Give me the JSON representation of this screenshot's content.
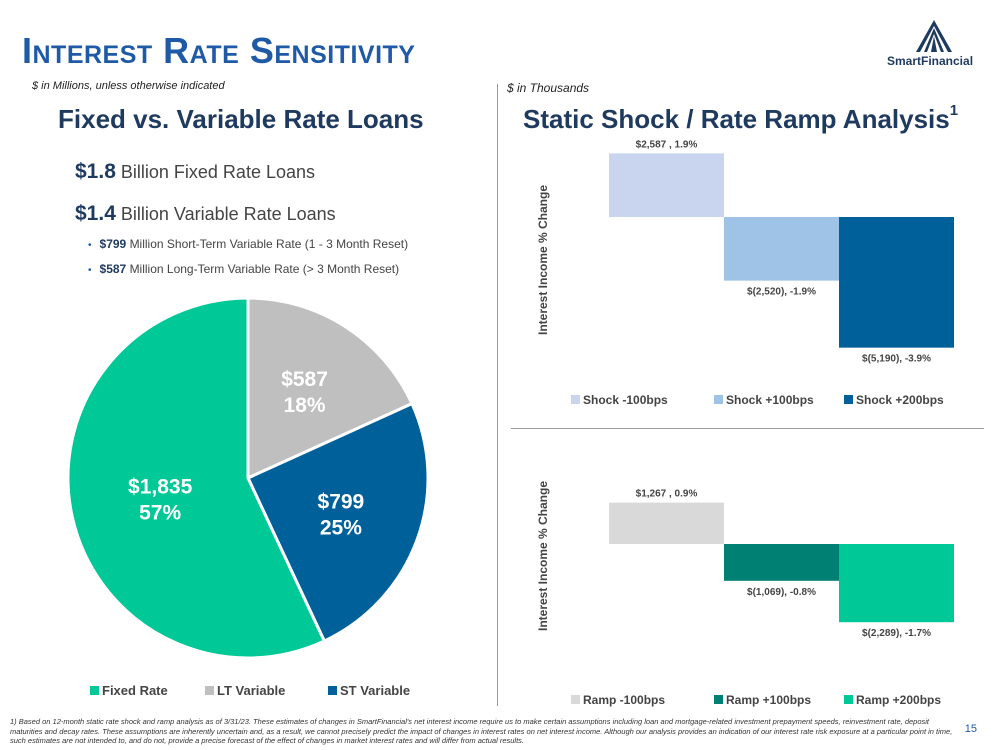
{
  "header": {
    "title": "Interest Rate Sensitivity",
    "left_note": "$ in Millions, unless otherwise indicated",
    "right_note": "$ in Thousands",
    "logo_text": "SmartFinancial"
  },
  "left": {
    "heading": "Fixed vs. Variable Rate Loans",
    "line1_value": "$1.8",
    "line1_text": "Billion Fixed Rate Loans",
    "line2_value": "$1.4",
    "line2_text": "Billion Variable Rate Loans",
    "bullet1_value": "$799",
    "bullet1_text": "Million Short-Term Variable Rate (1 - 3 Month Reset)",
    "bullet2_value": "$587",
    "bullet2_text": "Million Long-Term Variable Rate (> 3 Month Reset)"
  },
  "right": {
    "heading": "Static Shock / Rate Ramp Analysis",
    "heading_sup": "1"
  },
  "colors": {
    "fixed": "#00c896",
    "lt": "#bfbfbf",
    "st": "#00609a",
    "shock_down": "#c9d5ee",
    "shock_up100": "#9fc3e7",
    "shock_up200": "#00609a",
    "ramp_down": "#d9d9d9",
    "ramp_up100": "#008073",
    "ramp_up200": "#00c896"
  },
  "chart_data": [
    {
      "type": "pie",
      "title": "",
      "categories": [
        "Fixed Rate",
        "LT Variable",
        "ST Variable"
      ],
      "values": [
        1835,
        587,
        799
      ],
      "value_labels": [
        "$1,835",
        "$587",
        "$799"
      ],
      "pct_labels": [
        "57%",
        "18%",
        "25%"
      ],
      "legend_position": "bottom"
    },
    {
      "type": "bar",
      "title": "",
      "ylabel": "Interest Income % Change",
      "categories": [
        "Shock -100bps",
        "Shock +100bps",
        "Shock +200bps"
      ],
      "values": [
        1.9,
        -1.9,
        -3.9
      ],
      "data_labels": [
        "$2,587 , 1.9%",
        "$(2,520), -1.9%",
        "$(5,190), -3.9%"
      ],
      "ylim": [
        -3.9,
        1.9
      ],
      "legend_position": "bottom"
    },
    {
      "type": "bar",
      "title": "",
      "ylabel": "Interest Income % Change",
      "categories": [
        "Ramp -100bps",
        "Ramp +100bps",
        "Ramp +200bps"
      ],
      "values": [
        0.9,
        -0.8,
        -1.7
      ],
      "data_labels": [
        "$1,267 , 0.9%",
        "$(1,069), -0.8%",
        "$(2,289), -1.7%"
      ],
      "ylim": [
        -3.9,
        1.9
      ],
      "legend_position": "bottom"
    }
  ],
  "footnote": "1)  Based on 12-month static rate shock and ramp analysis as of 3/31/23. These estimates of changes in SmartFinancial's net interest income require us to make certain assumptions including loan and mortgage-related investment prepayment speeds, reinvestment rate, deposit maturities and decay rates. These assumptions are inherently uncertain and, as a result, we cannot precisely predict the impact of changes in interest rates on net interest income. Although our analysis provides an indication of our interest rate risk exposure at a particular point in time, such estimates are not intended to, and do not, provide a precise forecast of the effect of changes in market interest rates and will differ from actual results.",
  "page_number": "15"
}
